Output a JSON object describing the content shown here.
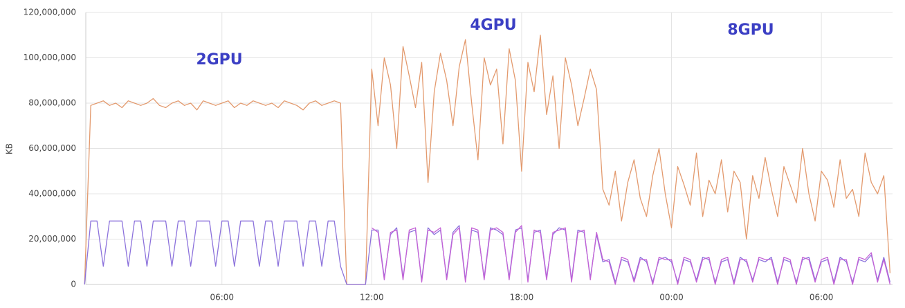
{
  "chart_data": {
    "type": "line",
    "y_label": "KB",
    "annotations": [
      "2GPU",
      "4GPU",
      "8GPU"
    ],
    "annotation_color": "#3b3fc4",
    "grid": true,
    "xlim": [
      0.55,
      32.85
    ],
    "xticks": [
      {
        "value": 6,
        "label": "06:00"
      },
      {
        "value": 12,
        "label": "12:00"
      },
      {
        "value": 18,
        "label": "18:00"
      },
      {
        "value": 24,
        "label": "00:00"
      },
      {
        "value": 30,
        "label": "06:00"
      }
    ],
    "ylim": [
      0,
      120000000
    ],
    "yticks": [
      0,
      {
        "value": 20000000,
        "label": "20,000,000"
      },
      {
        "value": 40000000,
        "label": "40,000,000"
      },
      {
        "value": 60000000,
        "label": "60,000,000"
      },
      {
        "value": 80000000,
        "label": "80,000,000"
      },
      {
        "value": 100000000,
        "label": "100,000,000"
      },
      {
        "value": 120000000,
        "label": "120,000,000"
      }
    ],
    "x": [
      0.5,
      0.75,
      1,
      1.25,
      1.5,
      1.75,
      2,
      2.25,
      2.5,
      2.75,
      3,
      3.25,
      3.5,
      3.75,
      4,
      4.25,
      4.5,
      4.75,
      5,
      5.25,
      5.5,
      5.75,
      6,
      6.25,
      6.5,
      6.75,
      7,
      7.25,
      7.5,
      7.75,
      8,
      8.25,
      8.5,
      8.75,
      9,
      9.25,
      9.5,
      9.75,
      10,
      10.25,
      10.5,
      10.75,
      11,
      11.25,
      11.5,
      11.75,
      12,
      12.25,
      12.5,
      12.75,
      13,
      13.25,
      13.5,
      13.75,
      14,
      14.25,
      14.5,
      14.75,
      15,
      15.25,
      15.5,
      15.75,
      16,
      16.25,
      16.5,
      16.75,
      17,
      17.25,
      17.5,
      17.75,
      18,
      18.25,
      18.5,
      18.75,
      19,
      19.25,
      19.5,
      19.75,
      20,
      20.25,
      20.5,
      20.75,
      21,
      21.25,
      21.5,
      21.75,
      22,
      22.25,
      22.5,
      22.75,
      23,
      23.25,
      23.5,
      23.75,
      24,
      24.25,
      24.5,
      24.75,
      25,
      25.25,
      25.5,
      25.75,
      26,
      26.25,
      26.5,
      26.75,
      27,
      27.25,
      27.5,
      27.75,
      28,
      28.25,
      28.5,
      28.75,
      29,
      29.25,
      29.5,
      29.75,
      30,
      30.25,
      30.5,
      30.75,
      31,
      31.25,
      31.5,
      31.75,
      32,
      32.25,
      32.5,
      32.75
    ],
    "series": [
      {
        "color": "#e39a6e",
        "values": [
          0,
          79000000.0,
          80000000.0,
          81000000.0,
          79000000.0,
          80000000.0,
          78000000.0,
          81000000.0,
          80000000.0,
          79000000.0,
          80000000.0,
          82000000.0,
          79000000.0,
          78000000.0,
          80000000.0,
          81000000.0,
          79000000.0,
          80000000.0,
          77000000.0,
          81000000.0,
          80000000.0,
          79000000.0,
          80000000.0,
          81000000.0,
          78000000.0,
          80000000.0,
          79000000.0,
          81000000.0,
          80000000.0,
          79000000.0,
          80000000.0,
          78000000.0,
          81000000.0,
          80000000.0,
          79000000.0,
          77000000.0,
          80000000.0,
          81000000.0,
          79000000.0,
          80000000.0,
          81000000.0,
          80000000.0,
          0,
          0,
          0,
          0,
          95000000.0,
          70000000.0,
          100000000.0,
          88000000.0,
          60000000.0,
          105000000.0,
          92000000.0,
          78000000.0,
          98000000.0,
          45000000.0,
          85000000.0,
          102000000.0,
          90000000.0,
          70000000.0,
          96000000.0,
          108000000.0,
          80000000.0,
          55000000.0,
          100000000.0,
          88000000.0,
          95000000.0,
          62000000.0,
          104000000.0,
          90000000.0,
          50000000.0,
          98000000.0,
          85000000.0,
          110000000.0,
          75000000.0,
          92000000.0,
          60000000.0,
          100000000.0,
          88000000.0,
          70000000.0,
          82000000.0,
          95000000.0,
          86000000.0,
          42000000.0,
          35000000.0,
          50000000.0,
          28000000.0,
          45000000.0,
          55000000.0,
          38000000.0,
          30000000.0,
          48000000.0,
          60000000.0,
          40000000.0,
          25000000.0,
          52000000.0,
          44000000.0,
          35000000.0,
          58000000.0,
          30000000.0,
          46000000.0,
          40000000.0,
          55000000.0,
          32000000.0,
          50000000.0,
          45000000.0,
          20000000.0,
          48000000.0,
          38000000.0,
          56000000.0,
          42000000.0,
          30000000.0,
          52000000.0,
          44000000.0,
          36000000.0,
          60000000.0,
          40000000.0,
          28000000.0,
          50000000.0,
          46000000.0,
          34000000.0,
          55000000.0,
          38000000.0,
          42000000.0,
          30000000.0,
          58000000.0,
          45000000.0,
          40000000.0,
          48000000.0,
          5000000.0
        ]
      },
      {
        "color": "#8c72dc",
        "values": [
          0,
          28000000.0,
          28000000.0,
          8000000.0,
          28000000.0,
          28000000.0,
          28000000.0,
          8000000.0,
          28000000.0,
          28000000.0,
          8000000.0,
          28000000.0,
          28000000.0,
          28000000.0,
          8000000.0,
          28000000.0,
          28000000.0,
          8000000.0,
          28000000.0,
          28000000.0,
          28000000.0,
          8000000.0,
          28000000.0,
          28000000.0,
          8000000.0,
          28000000.0,
          28000000.0,
          28000000.0,
          8000000.0,
          28000000.0,
          28000000.0,
          8000000.0,
          28000000.0,
          28000000.0,
          28000000.0,
          8000000.0,
          28000000.0,
          28000000.0,
          8000000.0,
          28000000.0,
          28000000.0,
          8000000.0,
          0,
          0,
          0,
          0,
          24000000.0,
          24000000.0,
          3000000.0,
          22000000.0,
          25000000.0,
          3000000.0,
          23000000.0,
          24000000.0,
          2000000.0,
          25000000.0,
          22000000.0,
          24000000.0,
          3000000.0,
          23000000.0,
          26000000.0,
          2000000.0,
          24000000.0,
          23000000.0,
          3000000.0,
          25000000.0,
          24000000.0,
          22000000.0,
          3000000.0,
          24000000.0,
          25000000.0,
          2000000.0,
          23000000.0,
          24000000.0,
          3000000.0,
          22000000.0,
          25000000.0,
          24000000.0,
          2000000.0,
          24000000.0,
          23000000.0,
          3000000.0,
          22000000.0,
          10000000.0,
          11000000.0,
          1000000.0,
          11000000.0,
          10000000.0,
          2000000.0,
          12000000.0,
          10000000.0,
          1000000.0,
          11000000.0,
          12000000.0,
          10000000.0,
          1000000.0,
          11000000.0,
          10000000.0,
          2000000.0,
          12000000.0,
          11000000.0,
          1000000.0,
          10000000.0,
          11000000.0,
          1000000.0,
          12000000.0,
          10000000.0,
          2000000.0,
          11000000.0,
          10000000.0,
          12000000.0,
          1000000.0,
          11000000.0,
          10000000.0,
          1000000.0,
          11000000.0,
          12000000.0,
          2000000.0,
          10000000.0,
          11000000.0,
          1000000.0,
          12000000.0,
          10000000.0,
          1000000.0,
          11000000.0,
          10000000.0,
          13000000.0,
          2000000.0,
          12000000.0,
          1000000.0
        ]
      },
      {
        "color": "#c463d6",
        "values": [
          null,
          null,
          null,
          null,
          null,
          null,
          null,
          null,
          null,
          null,
          null,
          null,
          null,
          null,
          null,
          null,
          null,
          null,
          null,
          null,
          null,
          null,
          null,
          null,
          null,
          null,
          null,
          null,
          null,
          null,
          null,
          null,
          null,
          null,
          null,
          null,
          null,
          null,
          null,
          null,
          null,
          null,
          null,
          null,
          null,
          null,
          25000000.0,
          23000000.0,
          2000000.0,
          23000000.0,
          24000000.0,
          2000000.0,
          24000000.0,
          25000000.0,
          1000000.0,
          24000000.0,
          23000000.0,
          25000000.0,
          2000000.0,
          22000000.0,
          25000000.0,
          1000000.0,
          25000000.0,
          24000000.0,
          2000000.0,
          24000000.0,
          25000000.0,
          23000000.0,
          2000000.0,
          23000000.0,
          26000000.0,
          1000000.0,
          24000000.0,
          23000000.0,
          2000000.0,
          23000000.0,
          24000000.0,
          25000000.0,
          1000000.0,
          23000000.0,
          24000000.0,
          2000000.0,
          23000000.0,
          11000000.0,
          10000000.0,
          0,
          12000000.0,
          11000000.0,
          1000000.0,
          11000000.0,
          11000000.0,
          0,
          12000000.0,
          11000000.0,
          11000000.0,
          0,
          12000000.0,
          11000000.0,
          1000000.0,
          11000000.0,
          12000000.0,
          0,
          11000000.0,
          12000000.0,
          0,
          11000000.0,
          11000000.0,
          1000000.0,
          12000000.0,
          11000000.0,
          11000000.0,
          0,
          12000000.0,
          11000000.0,
          0,
          12000000.0,
          11000000.0,
          1000000.0,
          11000000.0,
          12000000.0,
          0,
          11000000.0,
          11000000.0,
          0,
          12000000.0,
          11000000.0,
          14000000.0,
          1000000.0,
          11000000.0,
          0
        ]
      }
    ]
  }
}
